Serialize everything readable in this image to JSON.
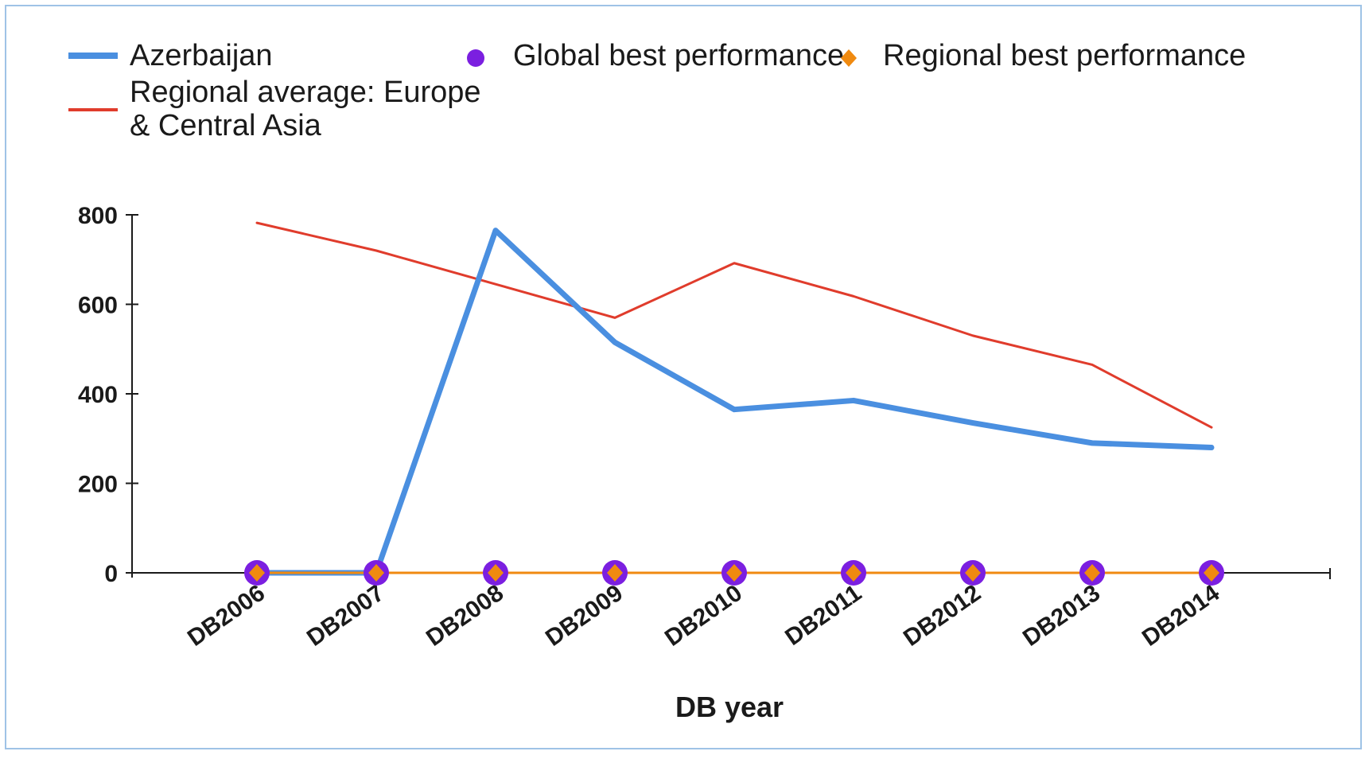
{
  "chart_data": {
    "type": "line",
    "categories": [
      "DB2006",
      "DB2007",
      "DB2008",
      "DB2009",
      "DB2010",
      "DB2011",
      "DB2012",
      "DB2013",
      "DB2014"
    ],
    "xlabel": "DB year",
    "ylabel": "",
    "ylim": [
      0,
      800
    ],
    "yticks": [
      "0",
      "200",
      "400",
      "600",
      "800"
    ],
    "grid": false,
    "legend_position": "top",
    "series": [
      {
        "name": "Azerbaijan",
        "color": "#4a8fe0",
        "marker": "none",
        "values": [
          0,
          0,
          765,
          515,
          365,
          385,
          335,
          290,
          280
        ]
      },
      {
        "name": "Regional average: Europe & Central Asia",
        "color": "#e03c2c",
        "marker": "none",
        "values": [
          782,
          720,
          645,
          570,
          692,
          618,
          530,
          465,
          325
        ]
      },
      {
        "name": "Global best performance",
        "color": "#7b1fe0",
        "marker": "circle",
        "values": [
          0,
          0,
          0,
          0,
          0,
          0,
          0,
          0,
          0
        ]
      },
      {
        "name": "Regional best performance",
        "color": "#f08a10",
        "marker": "diamond",
        "values": [
          0,
          0,
          0,
          0,
          0,
          0,
          0,
          0,
          0
        ]
      }
    ]
  }
}
